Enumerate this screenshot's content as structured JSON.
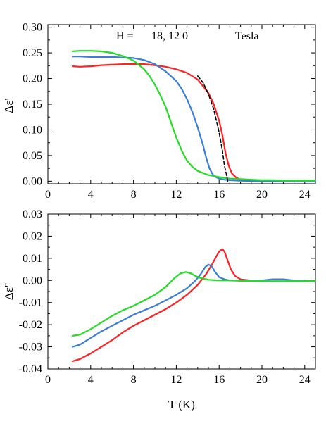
{
  "chart_data": [
    {
      "type": "line",
      "annotation": {
        "field_label": "H =",
        "field_values": "18,    12    0",
        "unit": "Tesla"
      },
      "xlabel": "",
      "ylabel": "Δε'",
      "xlim": [
        0,
        25
      ],
      "ylim": [
        -0.005,
        0.305
      ],
      "xticks": [
        0,
        4,
        8,
        12,
        16,
        20,
        24
      ],
      "yticks": [
        0.0,
        0.05,
        0.1,
        0.15,
        0.2,
        0.25,
        0.3
      ],
      "ytick_labels": [
        "0.00",
        "0.05",
        "0.10",
        "0.15",
        "0.20",
        "0.25",
        "0.30"
      ],
      "series": [
        {
          "color": "#ff2020",
          "x": [
            2.3,
            3,
            4,
            5,
            6,
            7,
            8,
            9,
            10,
            11,
            12,
            13,
            14,
            15,
            15.5,
            16,
            16.3,
            16.6,
            16.9,
            17.2,
            17.6,
            18,
            18.5,
            19,
            20,
            21,
            22,
            23,
            24,
            25
          ],
          "y": [
            0.224,
            0.223,
            0.224,
            0.226,
            0.227,
            0.228,
            0.228,
            0.228,
            0.226,
            0.223,
            0.218,
            0.211,
            0.198,
            0.172,
            0.15,
            0.118,
            0.09,
            0.055,
            0.03,
            0.015,
            0.007,
            0.003,
            0.002,
            0.001,
            0.0,
            0.0,
            0.0,
            0.0,
            0.0,
            0.0
          ]
        },
        {
          "color": "#3a7ddb",
          "x": [
            2.3,
            3,
            4,
            5,
            6,
            7,
            8,
            9,
            10,
            11,
            12,
            12.5,
            13,
            13.5,
            14,
            14.5,
            14.8,
            15.1,
            15.4,
            15.7,
            16,
            16.5,
            17,
            18,
            19,
            20,
            21,
            22,
            23,
            24,
            25
          ],
          "y": [
            0.243,
            0.243,
            0.242,
            0.242,
            0.242,
            0.241,
            0.24,
            0.236,
            0.228,
            0.214,
            0.195,
            0.18,
            0.16,
            0.135,
            0.105,
            0.07,
            0.045,
            0.025,
            0.013,
            0.008,
            0.005,
            0.003,
            0.002,
            0.001,
            0.0,
            0.0,
            0.0,
            0.0,
            0.0,
            0.0,
            0.0
          ]
        },
        {
          "color": "#22dd22",
          "x": [
            2.3,
            3,
            4,
            5,
            6,
            7,
            8,
            9,
            9.5,
            10,
            10.5,
            11,
            11.5,
            12,
            12.5,
            13,
            13.5,
            14,
            15,
            16,
            17,
            18,
            19,
            20,
            21,
            22,
            23,
            24,
            25
          ],
          "y": [
            0.253,
            0.254,
            0.254,
            0.253,
            0.25,
            0.244,
            0.235,
            0.218,
            0.205,
            0.188,
            0.168,
            0.145,
            0.115,
            0.085,
            0.06,
            0.04,
            0.028,
            0.02,
            0.012,
            0.008,
            0.005,
            0.004,
            0.003,
            0.002,
            0.002,
            0.001,
            0.001,
            0.001,
            0.001
          ]
        },
        {
          "color": "#000000",
          "dashed": true,
          "x": [
            14.0,
            14.5,
            15.0,
            15.5,
            16.0,
            16.3,
            16.5,
            16.7,
            16.8
          ],
          "y": [
            0.205,
            0.192,
            0.17,
            0.14,
            0.095,
            0.06,
            0.03,
            0.012,
            0.0
          ]
        }
      ]
    },
    {
      "type": "line",
      "xlabel": "T (K)",
      "ylabel": "Δε''",
      "xlim": [
        0,
        25
      ],
      "ylim": [
        -0.04,
        0.03
      ],
      "xticks": [
        0,
        4,
        8,
        12,
        16,
        20,
        24
      ],
      "yticks": [
        -0.04,
        -0.03,
        -0.02,
        -0.01,
        0.0,
        0.01,
        0.02,
        0.03
      ],
      "ytick_labels": [
        "-0.04",
        "-0.03",
        "-0.02",
        "-0.01",
        "0.00",
        "0.01",
        "0.02",
        "0.03"
      ],
      "series": [
        {
          "color": "#ff2020",
          "x": [
            2.3,
            3,
            4,
            5,
            6,
            7,
            8,
            9,
            10,
            11,
            12,
            13,
            14,
            14.8,
            15.3,
            15.7,
            16.0,
            16.3,
            16.5,
            16.8,
            17.1,
            17.5,
            18,
            19,
            20,
            21,
            22,
            23,
            24,
            25
          ],
          "y": [
            -0.0365,
            -0.0355,
            -0.033,
            -0.03,
            -0.027,
            -0.0235,
            -0.0205,
            -0.018,
            -0.0155,
            -0.013,
            -0.01,
            -0.0065,
            -0.002,
            0.003,
            0.007,
            0.0105,
            0.013,
            0.0142,
            0.013,
            0.009,
            0.005,
            0.002,
            0.0005,
            0.0,
            0.0,
            0.0005,
            0.0005,
            0.0,
            0.0,
            -0.0005
          ]
        },
        {
          "color": "#3a7ddb",
          "x": [
            2.3,
            3,
            4,
            5,
            6,
            7,
            8,
            9,
            10,
            11,
            12,
            13,
            13.8,
            14.3,
            14.7,
            15.0,
            15.3,
            15.6,
            16,
            16.5,
            17,
            18,
            19,
            20,
            21,
            22,
            23,
            24,
            25
          ],
          "y": [
            -0.03,
            -0.029,
            -0.026,
            -0.023,
            -0.0205,
            -0.018,
            -0.0155,
            -0.0135,
            -0.0115,
            -0.009,
            -0.0065,
            -0.0035,
            0.0,
            0.003,
            0.006,
            0.0072,
            0.0065,
            0.004,
            0.0015,
            0.0005,
            0.0,
            0.0,
            0.0,
            0.0,
            0.0005,
            0.0005,
            0.0,
            0.0,
            -0.0005
          ]
        },
        {
          "color": "#22dd22",
          "x": [
            2.3,
            3,
            4,
            5,
            6,
            7,
            8,
            9,
            10,
            11,
            11.8,
            12.4,
            12.9,
            13.3,
            13.8,
            14.3,
            15,
            16,
            17,
            18,
            19,
            20,
            21,
            22,
            23,
            24,
            25
          ],
          "y": [
            -0.025,
            -0.0245,
            -0.022,
            -0.019,
            -0.016,
            -0.0135,
            -0.0115,
            -0.009,
            -0.0065,
            -0.003,
            0.001,
            0.0032,
            0.0038,
            0.0033,
            0.002,
            0.001,
            0.0003,
            0.0,
            0.0,
            -0.0002,
            -0.0002,
            -0.0003,
            -0.0003,
            -0.0003,
            -0.0003,
            -0.0003,
            -0.0003
          ]
        }
      ]
    }
  ]
}
